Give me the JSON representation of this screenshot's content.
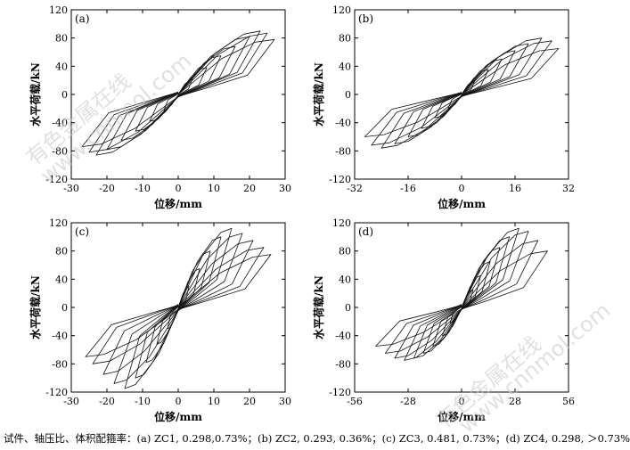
{
  "caption": "试件、轴压比、体积配箍率：(a) ZC1, 0.298,0.73%；(b) ZC2, 0.293, 0.36%；(c) ZC3, 0.481, 0.73%；(d) ZC4, 0.298, ＞0.73%",
  "watermarks": [
    "有色金属在线",
    "www.cnnmol.com"
  ],
  "chart_data": [
    {
      "type": "line",
      "panel": "(a)",
      "xlabel": "位移/mm",
      "ylabel": "水平荷载/kN",
      "xlim": [
        -30,
        30
      ],
      "ylim": [
        -120,
        120
      ],
      "xticks": [
        -30,
        -20,
        -10,
        0,
        10,
        20,
        30
      ],
      "yticks": [
        -120,
        -80,
        -40,
        0,
        40,
        80,
        120
      ],
      "grid": false,
      "hysteresis_loops": [
        {
          "dmax": 4,
          "fmax": 22,
          "dmin": -4,
          "fmin": -22
        },
        {
          "dmax": 8,
          "fmax": 38,
          "dmin": -8,
          "fmin": -38
        },
        {
          "dmax": 12,
          "fmax": 55,
          "dmin": -12,
          "fmin": -52
        },
        {
          "dmax": 16,
          "fmax": 68,
          "dmin": -16,
          "fmin": -65
        },
        {
          "dmax": 20,
          "fmax": 82,
          "dmin": -20,
          "fmin": -78
        },
        {
          "dmax": 23,
          "fmax": 90,
          "dmin": -23,
          "fmin": -86
        },
        {
          "dmax": 25,
          "fmax": 87,
          "dmin": -25,
          "fmin": -82
        },
        {
          "dmax": 27,
          "fmax": 78,
          "dmin": -27,
          "fmin": -74
        }
      ]
    },
    {
      "type": "line",
      "panel": "(b)",
      "xlabel": "位移/mm",
      "ylabel": "水平荷载/kN",
      "xlim": [
        -32,
        32
      ],
      "ylim": [
        -120,
        120
      ],
      "xticks": [
        -32,
        -16,
        0,
        16,
        32
      ],
      "yticks": [
        -120,
        -80,
        -40,
        0,
        40,
        80,
        120
      ],
      "grid": false,
      "hysteresis_loops": [
        {
          "dmax": 4,
          "fmax": 20,
          "dmin": -4,
          "fmin": -20
        },
        {
          "dmax": 8,
          "fmax": 35,
          "dmin": -8,
          "fmin": -33
        },
        {
          "dmax": 12,
          "fmax": 50,
          "dmin": -12,
          "fmin": -48
        },
        {
          "dmax": 16,
          "fmax": 62,
          "dmin": -16,
          "fmin": -60
        },
        {
          "dmax": 20,
          "fmax": 72,
          "dmin": -20,
          "fmin": -70
        },
        {
          "dmax": 24,
          "fmax": 80,
          "dmin": -24,
          "fmin": -76
        },
        {
          "dmax": 27,
          "fmax": 76,
          "dmin": -27,
          "fmin": -72
        },
        {
          "dmax": 29,
          "fmax": 65,
          "dmin": -29,
          "fmin": -60
        }
      ]
    },
    {
      "type": "line",
      "panel": "(c)",
      "xlabel": "位移/mm",
      "ylabel": "水平荷载/kN",
      "xlim": [
        -30,
        30
      ],
      "ylim": [
        -120,
        120
      ],
      "xticks": [
        -30,
        -20,
        -10,
        0,
        10,
        20,
        30
      ],
      "yticks": [
        -120,
        -80,
        -40,
        0,
        40,
        80,
        120
      ],
      "grid": false,
      "hysteresis_loops": [
        {
          "dmax": 3,
          "fmax": 30,
          "dmin": -3,
          "fmin": -30
        },
        {
          "dmax": 6,
          "fmax": 55,
          "dmin": -6,
          "fmin": -52
        },
        {
          "dmax": 9,
          "fmax": 80,
          "dmin": -9,
          "fmin": -78
        },
        {
          "dmax": 12,
          "fmax": 100,
          "dmin": -12,
          "fmin": -100
        },
        {
          "dmax": 15,
          "fmax": 112,
          "dmin": -15,
          "fmin": -115
        },
        {
          "dmax": 18,
          "fmax": 105,
          "dmin": -18,
          "fmin": -108
        },
        {
          "dmax": 21,
          "fmax": 95,
          "dmin": -21,
          "fmin": -95
        },
        {
          "dmax": 24,
          "fmax": 85,
          "dmin": -24,
          "fmin": -80
        },
        {
          "dmax": 26,
          "fmax": 75,
          "dmin": -26,
          "fmin": -70
        }
      ]
    },
    {
      "type": "line",
      "panel": "(d)",
      "xlabel": "位移/mm",
      "ylabel": "水平荷载/kN",
      "xlim": [
        -56,
        56
      ],
      "ylim": [
        -120,
        120
      ],
      "xticks": [
        -56,
        -28,
        0,
        28,
        56
      ],
      "yticks": [
        -120,
        -80,
        -40,
        0,
        40,
        80,
        120
      ],
      "grid": false,
      "hysteresis_loops": [
        {
          "dmax": 6,
          "fmax": 25,
          "dmin": -6,
          "fmin": -22
        },
        {
          "dmax": 10,
          "fmax": 45,
          "dmin": -10,
          "fmin": -40
        },
        {
          "dmax": 15,
          "fmax": 65,
          "dmin": -15,
          "fmin": -55
        },
        {
          "dmax": 20,
          "fmax": 85,
          "dmin": -20,
          "fmin": -65
        },
        {
          "dmax": 25,
          "fmax": 100,
          "dmin": -25,
          "fmin": -72
        },
        {
          "dmax": 30,
          "fmax": 112,
          "dmin": -30,
          "fmin": -75
        },
        {
          "dmax": 35,
          "fmax": 108,
          "dmin": -35,
          "fmin": -72
        },
        {
          "dmax": 40,
          "fmax": 95,
          "dmin": -40,
          "fmin": -65
        },
        {
          "dmax": 45,
          "fmax": 80,
          "dmin": -45,
          "fmin": -55
        }
      ]
    }
  ]
}
